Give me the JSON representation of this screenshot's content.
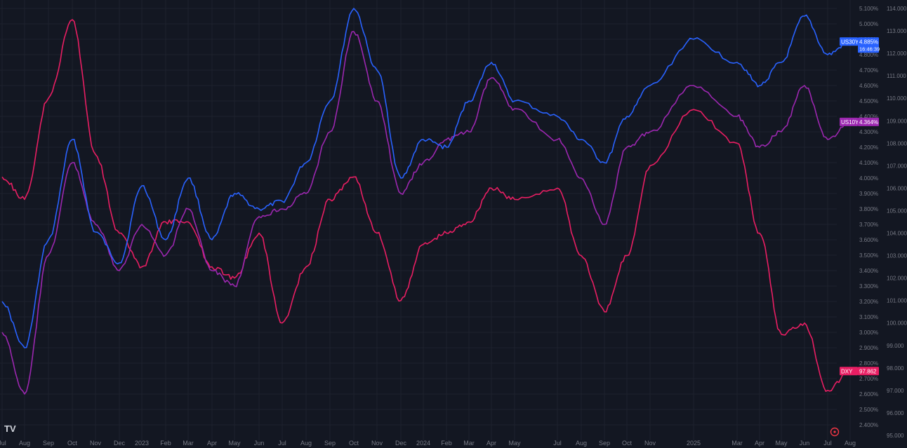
{
  "chart_data": {
    "type": "line",
    "x_labels": [
      "Jul",
      "Aug",
      "Sep",
      "Oct",
      "Nov",
      "Dec",
      "2023",
      "Feb",
      "Mar",
      "Apr",
      "May",
      "Jun",
      "Jul",
      "Aug",
      "Sep",
      "Oct",
      "Nov",
      "Dec",
      "2024",
      "Feb",
      "Mar",
      "Apr",
      "May",
      "Jul",
      "Aug",
      "Sep",
      "Oct",
      "Nov",
      "2025",
      "Mar",
      "Apr",
      "May",
      "Jun",
      "Jul",
      "Aug"
    ],
    "yields_axis": {
      "ticks": [
        "5.100%",
        "5.000%",
        "4.900%",
        "4.800%",
        "4.700%",
        "4.600%",
        "4.500%",
        "4.400%",
        "4.300%",
        "4.200%",
        "4.100%",
        "4.000%",
        "3.900%",
        "3.800%",
        "3.700%",
        "3.600%",
        "3.500%",
        "3.400%",
        "3.300%",
        "3.200%",
        "3.100%",
        "3.000%",
        "2.900%",
        "2.800%",
        "2.700%",
        "2.600%",
        "2.500%",
        "2.400%"
      ],
      "range": [
        2.4,
        5.1
      ]
    },
    "dxy_axis": {
      "ticks": [
        "114.000",
        "113.000",
        "112.000",
        "111.000",
        "110.000",
        "109.000",
        "108.000",
        "107.000",
        "106.000",
        "105.000",
        "104.000",
        "103.000",
        "102.000",
        "101.000",
        "100.000",
        "99.000",
        "98.000",
        "97.000",
        "96.000",
        "95.000"
      ],
      "range": [
        95,
        114
      ]
    },
    "series": [
      {
        "name": "US30Y",
        "axis": "yields",
        "color": "#2962ff",
        "last_label": "4.885%",
        "countdown": "16:46:39",
        "values": [
          3.2,
          2.9,
          3.6,
          4.25,
          3.65,
          3.45,
          3.95,
          3.6,
          4.0,
          3.6,
          3.9,
          3.8,
          3.85,
          4.1,
          4.5,
          5.1,
          4.7,
          4.0,
          4.25,
          4.2,
          4.5,
          4.75,
          4.5,
          4.4,
          4.25,
          4.1,
          4.4,
          4.6,
          4.9,
          4.75,
          4.6,
          4.75,
          5.05,
          4.8,
          4.885
        ]
      },
      {
        "name": "US10Y",
        "axis": "yields",
        "color": "#9c27b0",
        "last_label": "4.364%",
        "values": [
          3.0,
          2.6,
          3.5,
          4.1,
          3.7,
          3.4,
          3.7,
          3.5,
          3.8,
          3.4,
          3.3,
          3.75,
          3.8,
          3.9,
          4.3,
          4.95,
          4.5,
          3.9,
          4.1,
          4.25,
          4.3,
          4.65,
          4.45,
          4.25,
          4.0,
          3.7,
          4.2,
          4.3,
          4.6,
          4.4,
          4.2,
          4.3,
          4.6,
          4.25,
          4.364
        ]
      },
      {
        "name": "DXY",
        "axis": "dxy",
        "color": "#e91e63",
        "last_label": "97.862",
        "values": [
          106.5,
          105.5,
          110.0,
          113.5,
          107.5,
          104.0,
          102.5,
          104.5,
          104.5,
          102.5,
          102.0,
          104.0,
          100.0,
          102.5,
          105.5,
          106.5,
          104.0,
          101.0,
          103.5,
          104.0,
          104.5,
          106.0,
          105.5,
          106.0,
          103.0,
          100.5,
          103.0,
          107.0,
          109.5,
          108.0,
          104.0,
          99.5,
          100.0,
          97.0,
          97.862
        ]
      }
    ]
  },
  "brand": {
    "logo_text": "TV"
  }
}
